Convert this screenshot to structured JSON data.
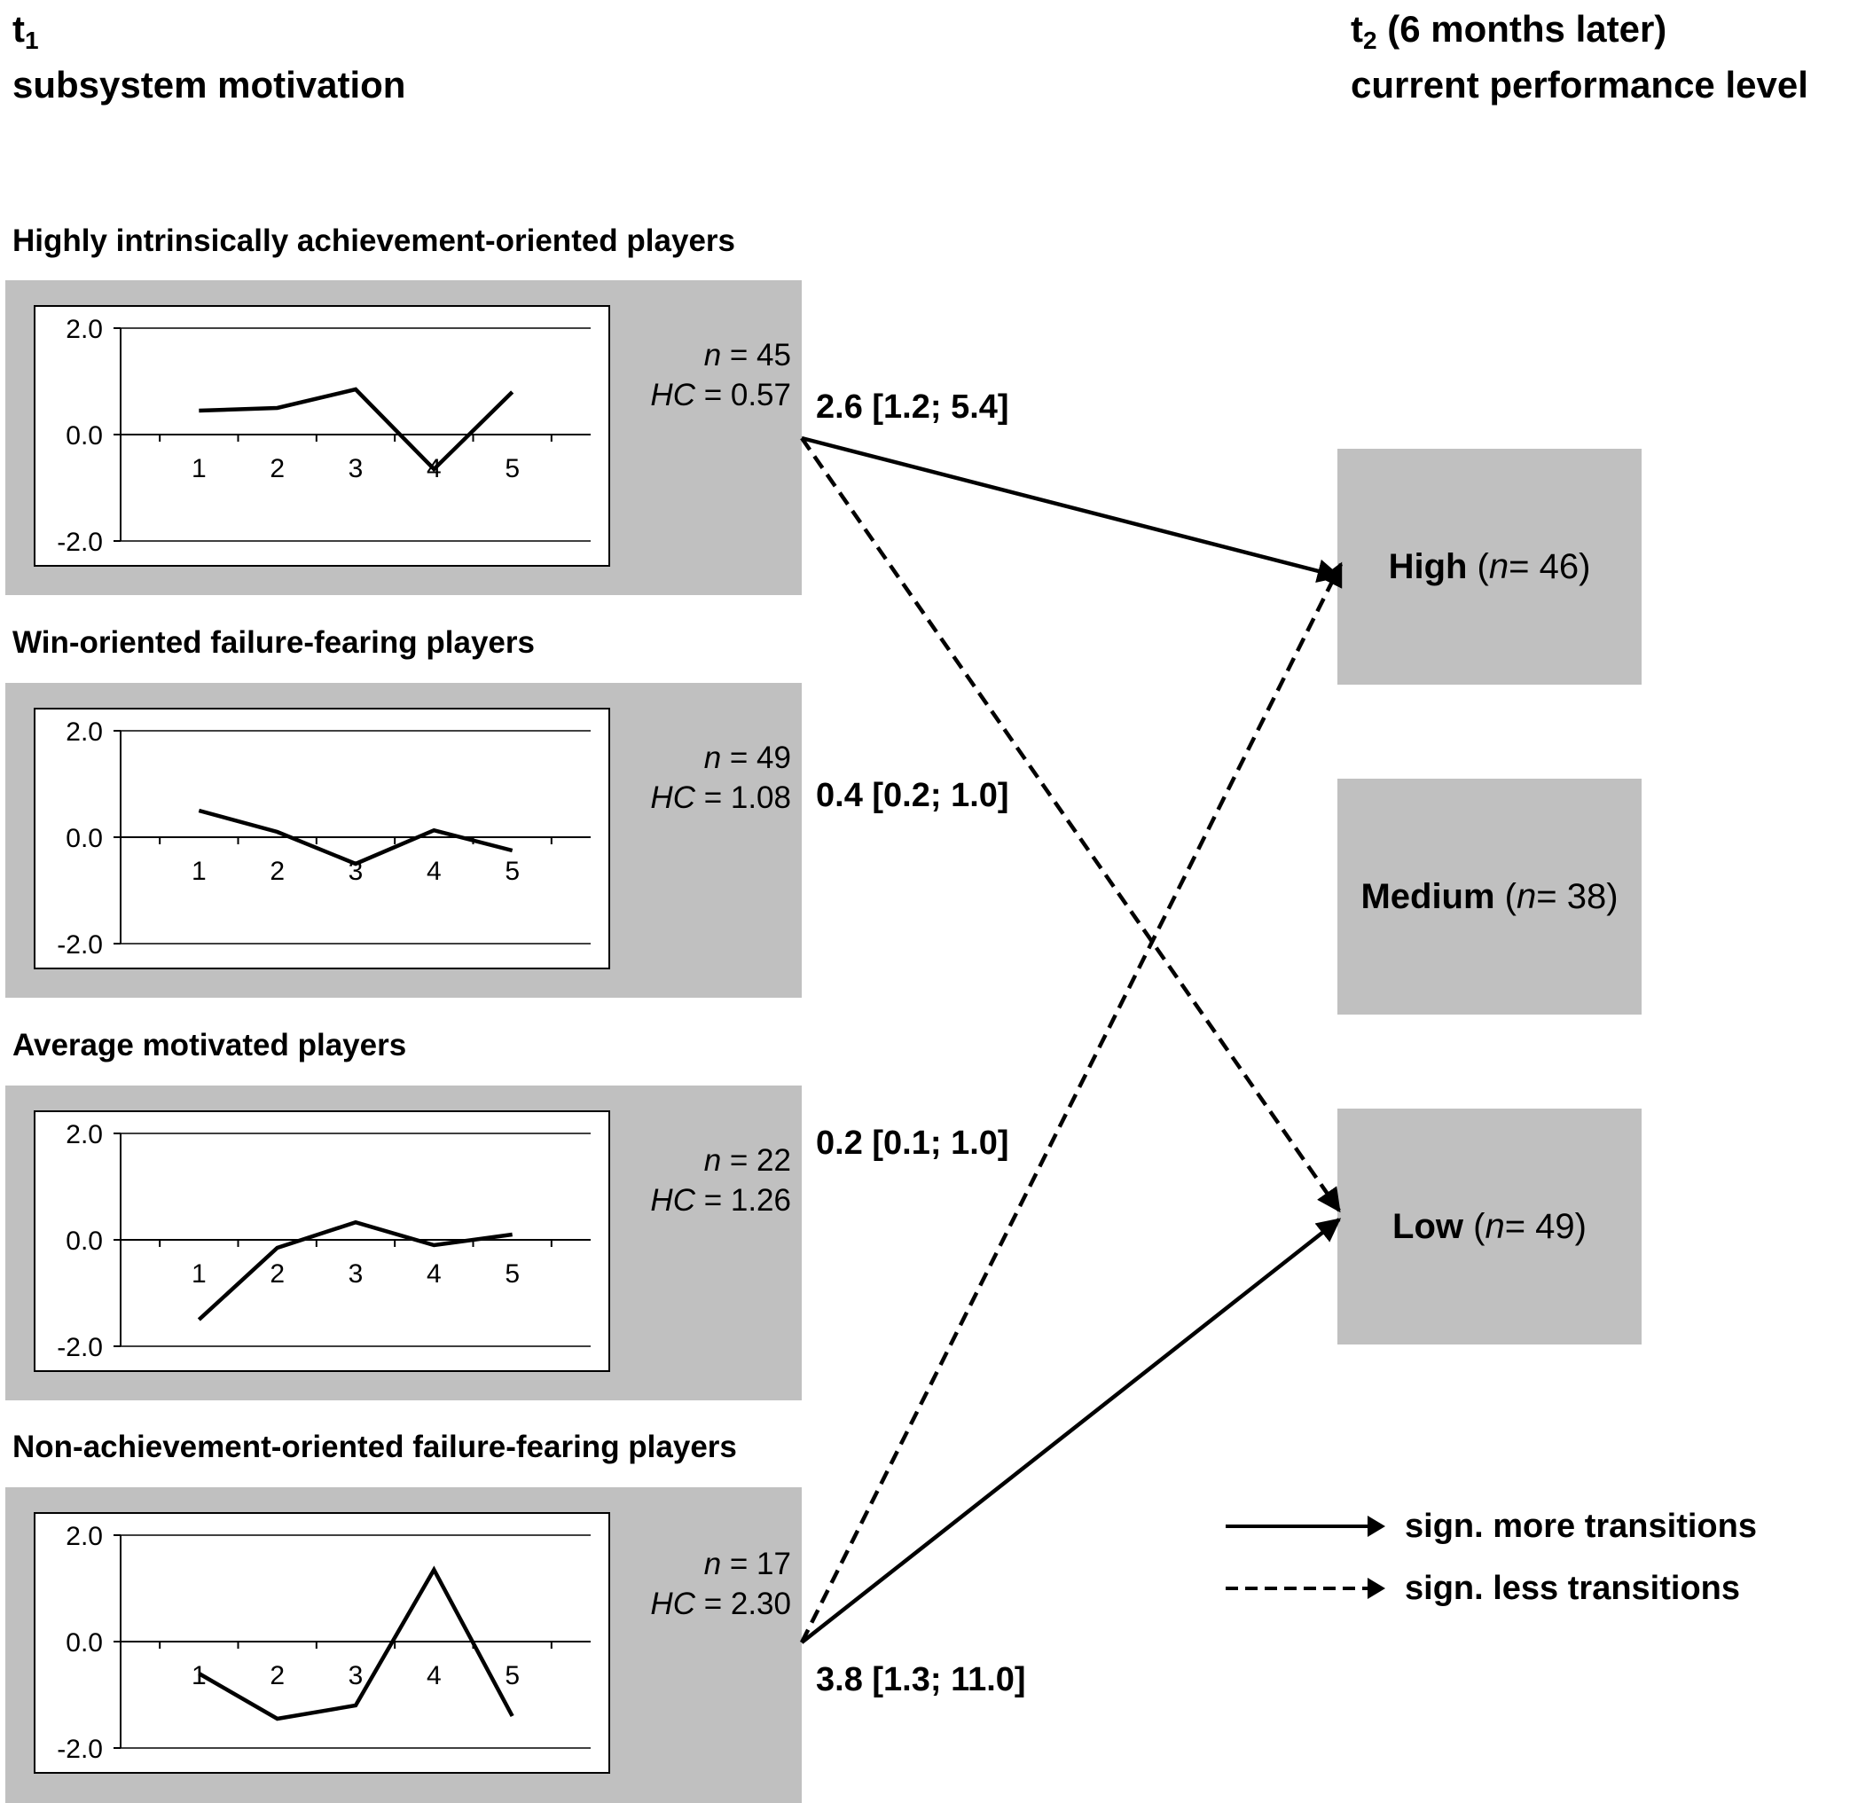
{
  "header_left": {
    "t": "t",
    "sub": "1",
    "line2": "subsystem motivation"
  },
  "header_right": {
    "t": "t",
    "sub": "2",
    "rest": " (6 months later)",
    "line2": "current performance level"
  },
  "axis": {
    "ymax_label": "2.0",
    "yzero_label": "0.0",
    "ymin_label": "-2.0",
    "x_labels": [
      "1",
      "2",
      "3",
      "4",
      "5"
    ]
  },
  "groups": [
    {
      "title": "Highly intrinsically achievement-oriented players",
      "n_label": "n",
      "n_value": " = 45",
      "hc_label": "HC",
      "hc_value": " = 0.57",
      "values": [
        0.45,
        0.5,
        0.85,
        -0.65,
        0.8
      ]
    },
    {
      "title": "Win-oriented failure-fearing players",
      "n_label": "n",
      "n_value": " = 49",
      "hc_label": "HC",
      "hc_value": " = 1.08",
      "values": [
        0.5,
        0.1,
        -0.5,
        0.13,
        -0.25
      ]
    },
    {
      "title": "Average motivated players",
      "n_label": "n",
      "n_value": " = 22",
      "hc_label": "HC",
      "hc_value": " = 1.26",
      "values": [
        -1.5,
        -0.15,
        0.33,
        -0.1,
        0.1
      ]
    },
    {
      "title": "Non-achievement-oriented failure-fearing players",
      "n_label": "n",
      "n_value": " = 17",
      "hc_label": "HC",
      "hc_value": " = 2.30",
      "values": [
        -0.6,
        -1.45,
        -1.2,
        1.35,
        -1.4
      ]
    }
  ],
  "outcomes": [
    {
      "label": "High",
      "n_label": "n",
      "n_value": " = 46)"
    },
    {
      "label": "Medium",
      "n_label": "n",
      "n_value": " = 38)"
    },
    {
      "label": "Low",
      "n_label": "n",
      "n_value": " = 49)"
    }
  ],
  "odds_ratios": [
    "2.6 [1.2; 5.4]",
    "0.4 [0.2; 1.0]",
    "0.2 [0.1; 1.0]",
    "3.8 [1.3; 11.0]"
  ],
  "transitions": [
    {
      "from": 0,
      "to": 0,
      "type": "more"
    },
    {
      "from": 0,
      "to": 2,
      "type": "less"
    },
    {
      "from": 3,
      "to": 0,
      "type": "less"
    },
    {
      "from": 3,
      "to": 2,
      "type": "more"
    }
  ],
  "legend": {
    "solid": "sign. more transitions",
    "dashed": "sign. less transitions"
  }
}
